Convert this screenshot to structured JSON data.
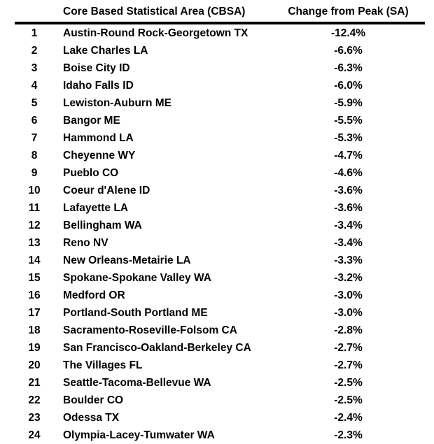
{
  "colors": {
    "text": "#000000",
    "background": "#ffffff",
    "rule": "#000000"
  },
  "table": {
    "headers": {
      "rank": "",
      "cbsa": "Core Based Statistical Area (CBSA)",
      "change": "Change from Peak (SA)"
    },
    "rows": [
      {
        "rank": "1",
        "cbsa": "Austin-Round Rock-Georgetown TX",
        "change": "-12.4%"
      },
      {
        "rank": "2",
        "cbsa": "Lake Charles LA",
        "change": "-6.6%"
      },
      {
        "rank": "3",
        "cbsa": "Boise City ID",
        "change": "-6.3%"
      },
      {
        "rank": "4",
        "cbsa": "Idaho Falls ID",
        "change": "-6.0%"
      },
      {
        "rank": "5",
        "cbsa": "Lewiston-Auburn ME",
        "change": "-5.9%"
      },
      {
        "rank": "6",
        "cbsa": "Bangor ME",
        "change": "-5.5%"
      },
      {
        "rank": "7",
        "cbsa": "Hammond LA",
        "change": "-5.3%"
      },
      {
        "rank": "8",
        "cbsa": "Cheyenne WY",
        "change": "-4.7%"
      },
      {
        "rank": "9",
        "cbsa": "Pueblo CO",
        "change": "-4.6%"
      },
      {
        "rank": "10",
        "cbsa": "Coeur d'Alene ID",
        "change": "-3.6%"
      },
      {
        "rank": "11",
        "cbsa": "Lafayette LA",
        "change": "-3.6%"
      },
      {
        "rank": "12",
        "cbsa": "Bellingham WA",
        "change": "-3.4%"
      },
      {
        "rank": "13",
        "cbsa": "Reno NV",
        "change": "-3.4%"
      },
      {
        "rank": "14",
        "cbsa": "New Orleans-Metairie LA",
        "change": "-3.3%"
      },
      {
        "rank": "15",
        "cbsa": "Spokane-Spokane Valley WA",
        "change": "-3.2%"
      },
      {
        "rank": "16",
        "cbsa": "Medford OR",
        "change": "-3.0%"
      },
      {
        "rank": "17",
        "cbsa": "Portland-South Portland ME",
        "change": "-3.0%"
      },
      {
        "rank": "18",
        "cbsa": "Sacramento-Roseville-Folsom CA",
        "change": "-2.8%"
      },
      {
        "rank": "19",
        "cbsa": "San Francisco-Oakland-Berkeley CA",
        "change": "-2.7%"
      },
      {
        "rank": "20",
        "cbsa": "The Villages FL",
        "change": "-2.7%"
      },
      {
        "rank": "21",
        "cbsa": "Seattle-Tacoma-Bellevue WA",
        "change": "-2.5%"
      },
      {
        "rank": "22",
        "cbsa": "Boulder CO",
        "change": "-2.5%"
      },
      {
        "rank": "23",
        "cbsa": "Odessa TX",
        "change": "-2.4%"
      },
      {
        "rank": "24",
        "cbsa": "Olympia-Lacey-Tumwater WA",
        "change": "-2.3%"
      }
    ]
  }
}
